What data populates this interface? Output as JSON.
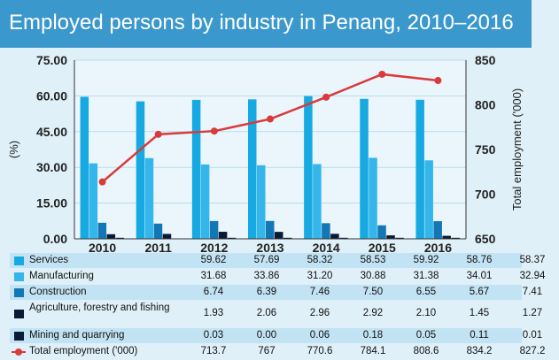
{
  "title": "Employed persons by industry in Penang, 2010–2016",
  "colors": {
    "services": "#17a9e1",
    "manufacturing": "#34b6ea",
    "construction": "#1377b4",
    "agriculture": "#0a1a34",
    "mining": "#0a1a34",
    "total": "#d93a3a"
  },
  "chart_data": {
    "type": "bar",
    "categories": [
      "2010",
      "2011",
      "2012",
      "2013",
      "2014",
      "2015",
      "2016"
    ],
    "ylabel": "(%)",
    "y2label": "Total employment ('000)",
    "ylim": [
      0,
      75
    ],
    "yticks": [
      "0.00",
      "15.00",
      "30.00",
      "45.00",
      "60.00",
      "75.00"
    ],
    "y2lim": [
      650,
      850
    ],
    "y2ticks": [
      "650",
      "700",
      "750",
      "800",
      "850"
    ],
    "series": [
      {
        "name": "Services",
        "values": [
          59.62,
          57.69,
          58.32,
          58.53,
          59.92,
          58.76,
          58.37
        ],
        "display": [
          "59.62",
          "57.69",
          "58.32",
          "58.53",
          "59.92",
          "58.76",
          "58.37"
        ]
      },
      {
        "name": "Manufacturing",
        "values": [
          31.68,
          33.86,
          31.2,
          30.88,
          31.38,
          34.01,
          32.94
        ],
        "display": [
          "31.68",
          "33.86",
          "31.20",
          "30.88",
          "31.38",
          "34.01",
          "32.94"
        ]
      },
      {
        "name": "Construction",
        "values": [
          6.74,
          6.39,
          7.46,
          7.5,
          6.55,
          5.67,
          7.41
        ],
        "display": [
          "6.74",
          "6.39",
          "7.46",
          "7.50",
          "6.55",
          "5.67",
          "7.41"
        ]
      },
      {
        "name": "Agriculture, forestry and fishing",
        "values": [
          1.93,
          2.06,
          2.96,
          2.92,
          2.1,
          1.45,
          1.27
        ],
        "display": [
          "1.93",
          "2.06",
          "2.96",
          "2.92",
          "2.10",
          "1.45",
          "1.27"
        ]
      },
      {
        "name": "Mining and quarrying",
        "values": [
          0.03,
          0.0,
          0.06,
          0.18,
          0.05,
          0.11,
          0.01
        ],
        "display": [
          "0.03",
          "0.00",
          "0.06",
          "0.18",
          "0.05",
          "0.11",
          "0.01"
        ]
      }
    ],
    "line": {
      "name": "Total employment ('000)",
      "values": [
        713.7,
        767,
        770.6,
        784.1,
        808.6,
        834.2,
        827.2
      ],
      "display": [
        "713.7",
        "767",
        "770.6",
        "784.1",
        "808.6",
        "834.2",
        "827.2"
      ]
    }
  }
}
